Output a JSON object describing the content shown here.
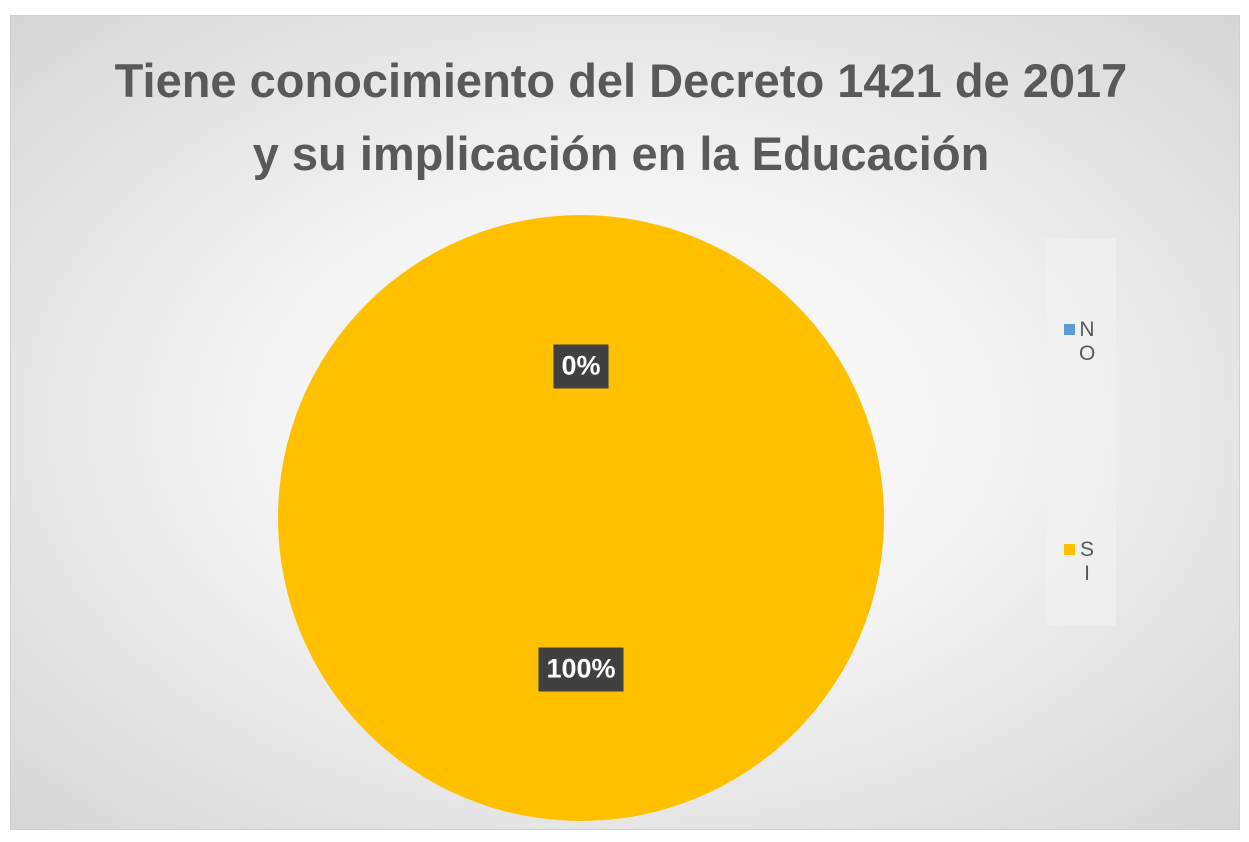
{
  "chart_data": {
    "type": "pie",
    "title": "Tiene conocimiento del Decreto 1421 de 2017 y su implicación en la Educación",
    "categories": [
      "NO",
      "SI"
    ],
    "values": [
      0,
      100
    ],
    "value_labels": [
      "0%",
      "100%"
    ],
    "colors": [
      "#5b9bd5",
      "#ffc000"
    ],
    "legend": "right"
  }
}
